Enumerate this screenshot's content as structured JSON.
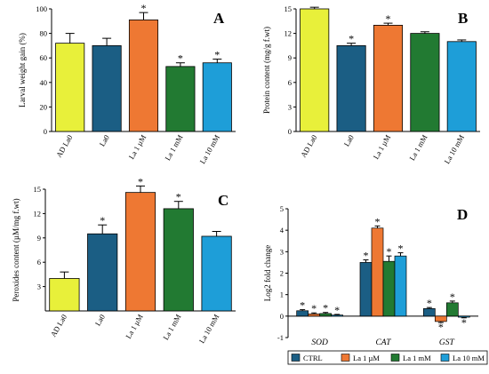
{
  "chart_data": [
    {
      "type": "bar",
      "panel": "A",
      "ylabel": "Larval weight gain (%)",
      "ylim": [
        0,
        100
      ],
      "yticks": [
        0,
        20,
        40,
        60,
        80,
        100
      ],
      "categories": [
        "AD La0",
        "La0",
        "La 1 µM",
        "La 1 mM",
        "La 10 mM"
      ],
      "values": [
        72,
        70,
        91,
        53,
        56
      ],
      "errors": [
        8,
        6,
        6,
        3,
        3
      ],
      "significant": [
        false,
        false,
        true,
        true,
        true
      ],
      "colors": [
        "#e8f03a",
        "#1b5e84",
        "#ee7833",
        "#227a32",
        "#1e9ed8"
      ]
    },
    {
      "type": "bar",
      "panel": "B",
      "ylabel": "Protein content  (mg/g f.wt)",
      "ylim": [
        0,
        15
      ],
      "yticks": [
        0,
        3,
        6,
        9,
        12,
        15
      ],
      "categories": [
        "AD La0",
        "La0",
        "La 1 µM",
        "La 1 mM",
        "La 10 mM"
      ],
      "values": [
        15.0,
        10.5,
        13.0,
        12.0,
        11.0
      ],
      "errors": [
        0.2,
        0.3,
        0.25,
        0.2,
        0.2
      ],
      "significant": [
        false,
        true,
        true,
        false,
        false
      ],
      "colors": [
        "#e8f03a",
        "#1b5e84",
        "#ee7833",
        "#227a32",
        "#1e9ed8"
      ]
    },
    {
      "type": "bar",
      "panel": "C",
      "ylabel": "Peroxides content (µM/mg f.wt)",
      "ylim": [
        0,
        15
      ],
      "yticks": [
        3,
        6,
        9,
        12,
        15
      ],
      "categories": [
        "AD La0",
        "La0",
        "La 1 µM",
        "La 1 mM",
        "La 10 mM"
      ],
      "values": [
        4.0,
        9.5,
        14.6,
        12.6,
        9.2
      ],
      "errors": [
        0.8,
        1.1,
        0.8,
        0.9,
        0.6
      ],
      "significant": [
        false,
        true,
        true,
        true,
        false
      ],
      "colors": [
        "#e8f03a",
        "#1b5e84",
        "#ee7833",
        "#227a32",
        "#1e9ed8"
      ]
    },
    {
      "type": "bar",
      "panel": "D",
      "ylabel": "Log2 fold change",
      "ylim": [
        -1,
        5
      ],
      "yticks": [
        -1,
        0,
        1,
        2,
        3,
        4,
        5
      ],
      "categories": [
        "SOD",
        "CAT",
        "GST"
      ],
      "series": [
        {
          "name": "CTRL",
          "color": "#1b5e84",
          "values": [
            0.25,
            2.5,
            0.35
          ],
          "errors": [
            0.05,
            0.12,
            0.05
          ],
          "significant": [
            true,
            true,
            true
          ]
        },
        {
          "name": "La 1 µM",
          "color": "#ee7833",
          "values": [
            0.1,
            4.1,
            -0.25
          ],
          "errors": [
            0.05,
            0.1,
            0.05
          ],
          "significant": [
            true,
            true,
            true
          ]
        },
        {
          "name": "La 1 mM",
          "color": "#227a32",
          "values": [
            0.12,
            2.55,
            0.62
          ],
          "errors": [
            0.05,
            0.25,
            0.08
          ],
          "significant": [
            true,
            true,
            true
          ]
        },
        {
          "name": "La 10 mM",
          "color": "#1e9ed8",
          "values": [
            0.05,
            2.8,
            -0.05
          ],
          "errors": [
            0.03,
            0.15,
            0.03
          ],
          "significant": [
            true,
            true,
            true
          ]
        }
      ],
      "legend_position": "bottom"
    }
  ]
}
